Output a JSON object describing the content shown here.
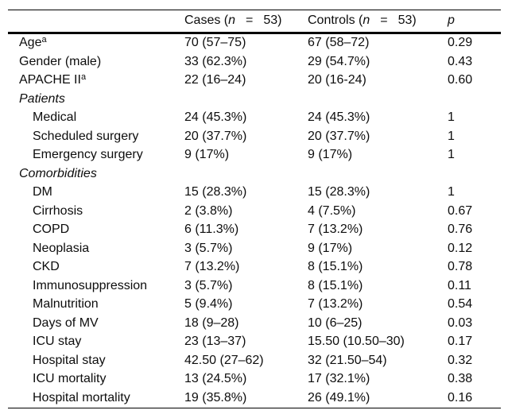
{
  "table": {
    "header": {
      "label": "",
      "cases": {
        "pre": "Cases (",
        "n": "n",
        "eq": "=",
        "post": "53)"
      },
      "controls": {
        "pre": "Controls (",
        "n": "n",
        "eq": "=",
        "post": "53)"
      },
      "p": "p"
    },
    "rows": [
      {
        "label": "Age",
        "sup": "a",
        "indent": false,
        "section": false,
        "cases": "70 (57–75)",
        "controls": "67 (58–72)",
        "p": "0.29"
      },
      {
        "label": "Gender (male)",
        "indent": false,
        "section": false,
        "cases": "33 (62.3%)",
        "controls": "29 (54.7%)",
        "p": "0.43"
      },
      {
        "label": "APACHE II",
        "sup": "a",
        "indent": false,
        "section": false,
        "cases": "22 (16–24)",
        "controls": "20 (16-24)",
        "p": "0.60"
      },
      {
        "label": "Patients",
        "indent": false,
        "section": true,
        "cases": "",
        "controls": "",
        "p": ""
      },
      {
        "label": "Medical",
        "indent": true,
        "section": false,
        "cases": "24 (45.3%)",
        "controls": "24 (45.3%)",
        "p": "1"
      },
      {
        "label": "Scheduled surgery",
        "indent": true,
        "section": false,
        "cases": "20 (37.7%)",
        "controls": "20 (37.7%)",
        "p": "1"
      },
      {
        "label": "Emergency surgery",
        "indent": true,
        "section": false,
        "cases": "9 (17%)",
        "controls": "9 (17%)",
        "p": "1"
      },
      {
        "label": "Comorbidities",
        "indent": false,
        "section": true,
        "cases": "",
        "controls": "",
        "p": ""
      },
      {
        "label": "DM",
        "indent": true,
        "section": false,
        "cases": "15 (28.3%)",
        "controls": "15 (28.3%)",
        "p": "1"
      },
      {
        "label": "Cirrhosis",
        "indent": true,
        "section": false,
        "cases": "2 (3.8%)",
        "controls": "4 (7.5%)",
        "p": "0.67"
      },
      {
        "label": "COPD",
        "indent": true,
        "section": false,
        "cases": "6 (11.3%)",
        "controls": "7 (13.2%)",
        "p": "0.76"
      },
      {
        "label": "Neoplasia",
        "indent": true,
        "section": false,
        "cases": "3 (5.7%)",
        "controls": "9 (17%)",
        "p": "0.12"
      },
      {
        "label": "CKD",
        "indent": true,
        "section": false,
        "cases": "7 (13.2%)",
        "controls": "8 (15.1%)",
        "p": "0.78"
      },
      {
        "label": "Immunosuppression",
        "indent": true,
        "section": false,
        "cases": "3 (5.7%)",
        "controls": "8 (15.1%)",
        "p": "0.11"
      },
      {
        "label": "Malnutrition",
        "indent": true,
        "section": false,
        "cases": "5 (9.4%)",
        "controls": "7 (13.2%)",
        "p": "0.54"
      },
      {
        "label": "Days of MV",
        "indent": true,
        "section": false,
        "cases": "18 (9–28)",
        "controls": "10 (6–25)",
        "p": "0.03"
      },
      {
        "label": "ICU stay",
        "indent": true,
        "section": false,
        "cases": "23 (13–37)",
        "controls": "15.50 (10.50–30)",
        "p": "0.17"
      },
      {
        "label": "Hospital stay",
        "indent": true,
        "section": false,
        "cases": "42.50 (27–62)",
        "controls": "32 (21.50–54)",
        "p": "0.32"
      },
      {
        "label": "ICU mortality",
        "indent": true,
        "section": false,
        "cases": "13 (24.5%)",
        "controls": "17 (32.1%)",
        "p": "0.38"
      },
      {
        "label": "Hospital mortality",
        "indent": true,
        "section": false,
        "cases": "19 (35.8%)",
        "controls": "26 (49.1%)",
        "p": "0.16"
      }
    ]
  }
}
